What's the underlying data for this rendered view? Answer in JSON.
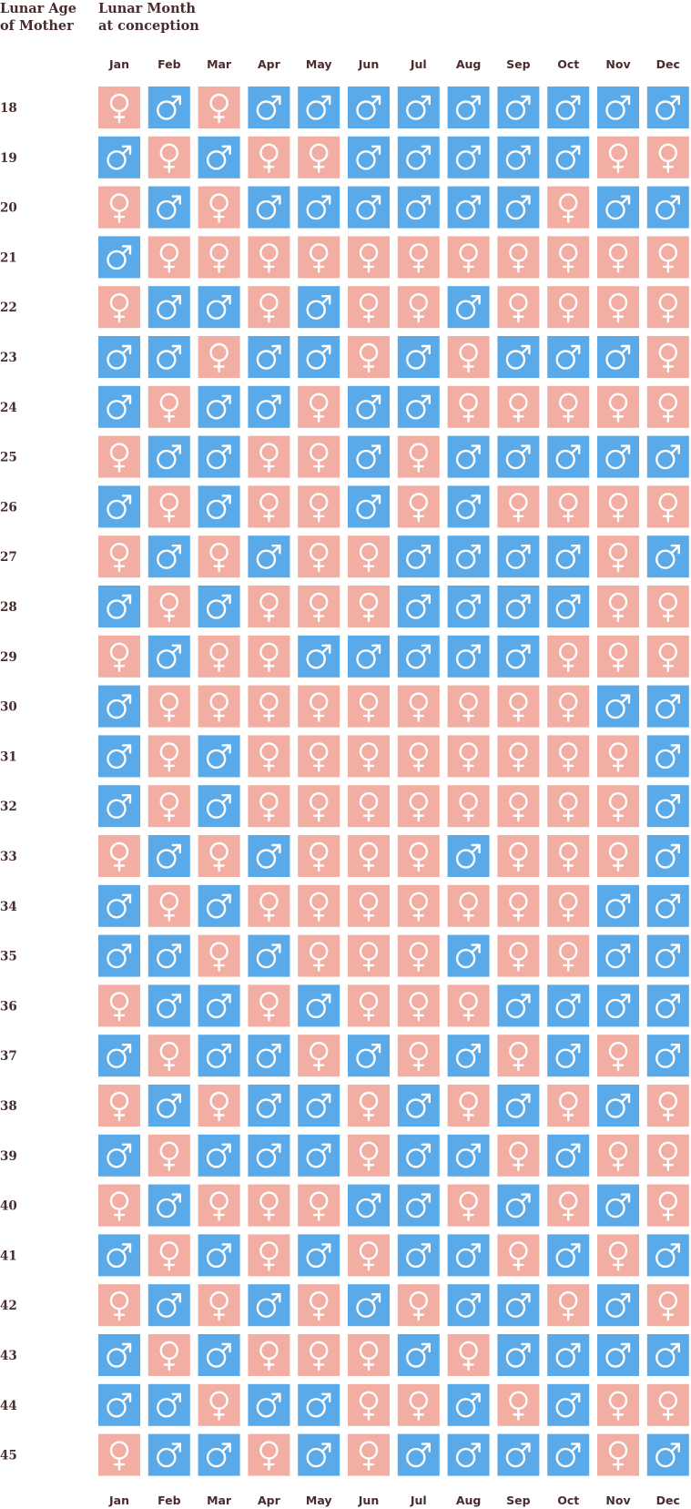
{
  "header": {
    "age_line1": "Lunar Age",
    "age_line2": "of Mother",
    "month_line1": "Lunar Month",
    "month_line2": "at conception"
  },
  "colors": {
    "boy": "#5aa9e8",
    "girl": "#f2aea3",
    "text": "#4a2c2e"
  },
  "chart_data": {
    "type": "heatmap",
    "x_label": "Lunar Month at conception",
    "y_label": "Lunar Age of Mother",
    "months": [
      "Jan",
      "Feb",
      "Mar",
      "Apr",
      "May",
      "Jun",
      "Jul",
      "Aug",
      "Sep",
      "Oct",
      "Nov",
      "Dec"
    ],
    "ages": [
      18,
      19,
      20,
      21,
      22,
      23,
      24,
      25,
      26,
      27,
      28,
      29,
      30,
      31,
      32,
      33,
      34,
      35,
      36,
      37,
      38,
      39,
      40,
      41,
      42,
      43,
      44,
      45
    ],
    "legend": {
      "B": "boy (male symbol, blue)",
      "G": "girl (female symbol, pink)"
    },
    "grid": [
      "GBGBBBBBBBBB",
      "BGBGGBBBBBGG",
      "GBGBBBBBBGBB",
      "BGGGGGGGGGGG",
      "GBBGBGGBGGGG",
      "BBGBBGBGBBBG",
      "BGBBGBBGGGGG",
      "GBBGGBGBBBBB",
      "BGBGGBGBGGGG",
      "GBGBGGBBBBGB",
      "BGBGGGBBBBGG",
      "GBGGBBBBBGGG",
      "BGGGGGGGGGBB",
      "BGBGGGGGGGGB",
      "BGBGGGGGGGGB",
      "GBGBGGGBGGGB",
      "BGBGGGGGGGBB",
      "BBGBGGGBGGBB",
      "GBBGBGGGBBBB",
      "BGBBGBGBGBGB",
      "GBGBBGBGBGBG",
      "BGBBBGBBGBGG",
      "GBGGGBBGBGBG",
      "BGBGBGBBGBGB",
      "GBGBGBGBBGBG",
      "BGBGGGBGBBBB",
      "BBGBBGGBGBGG",
      "GBBGBGBBBBGB"
    ]
  }
}
